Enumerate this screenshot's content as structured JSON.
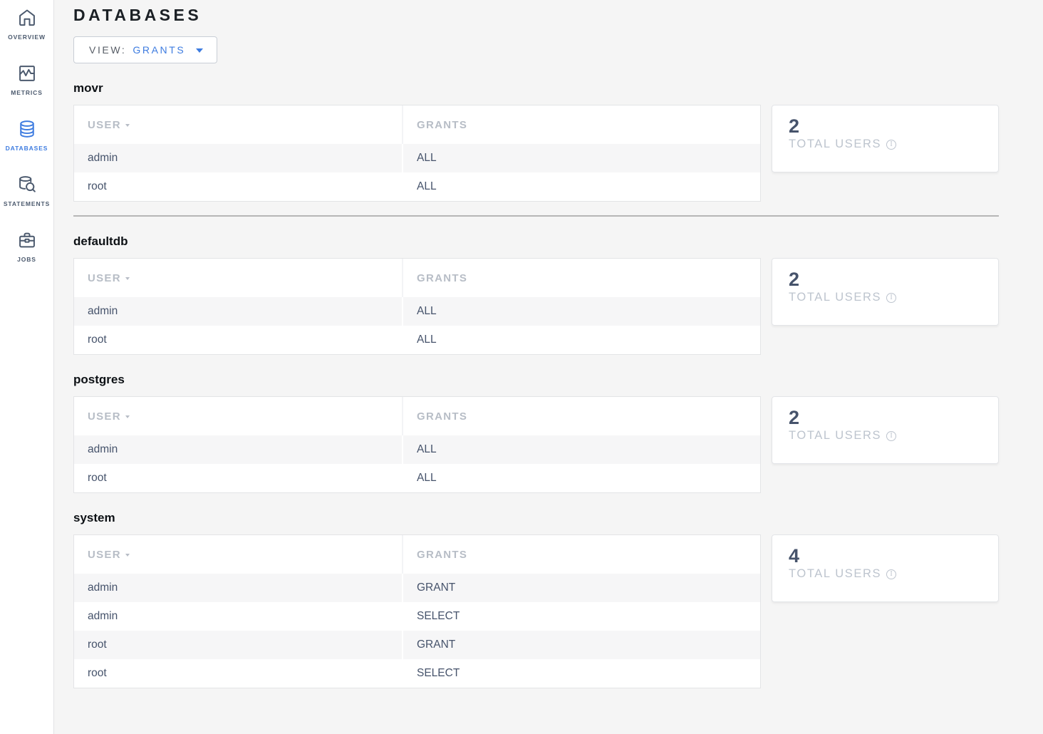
{
  "header": {
    "title": "DATABASES"
  },
  "view_selector": {
    "label": "VIEW:",
    "value": "GRANTS"
  },
  "sidebar": {
    "items": [
      {
        "id": "overview",
        "label": "OVERVIEW",
        "icon": "home-icon",
        "active": false
      },
      {
        "id": "metrics",
        "label": "METRICS",
        "icon": "metrics-icon",
        "active": false
      },
      {
        "id": "databases",
        "label": "DATABASES",
        "icon": "database-icon",
        "active": true
      },
      {
        "id": "statements",
        "label": "STATEMENTS",
        "icon": "statement-search-icon",
        "active": false
      },
      {
        "id": "jobs",
        "label": "JOBS",
        "icon": "briefcase-icon",
        "active": false
      }
    ]
  },
  "table_columns": {
    "user": "USER",
    "grants": "GRANTS"
  },
  "summary_label": "TOTAL USERS",
  "colors": {
    "accent": "#3e7ce0",
    "row_text": "#46536b",
    "muted_header": "#b7bdc6"
  },
  "sections": [
    {
      "name": "movr",
      "total_users": "2",
      "divider_after": true,
      "rows": [
        {
          "user": "admin",
          "grants": "ALL"
        },
        {
          "user": "root",
          "grants": "ALL"
        }
      ]
    },
    {
      "name": "defaultdb",
      "total_users": "2",
      "divider_after": false,
      "rows": [
        {
          "user": "admin",
          "grants": "ALL"
        },
        {
          "user": "root",
          "grants": "ALL"
        }
      ]
    },
    {
      "name": "postgres",
      "total_users": "2",
      "divider_after": false,
      "rows": [
        {
          "user": "admin",
          "grants": "ALL"
        },
        {
          "user": "root",
          "grants": "ALL"
        }
      ]
    },
    {
      "name": "system",
      "total_users": "4",
      "divider_after": false,
      "rows": [
        {
          "user": "admin",
          "grants": "GRANT"
        },
        {
          "user": "admin",
          "grants": "SELECT"
        },
        {
          "user": "root",
          "grants": "GRANT"
        },
        {
          "user": "root",
          "grants": "SELECT"
        }
      ]
    }
  ]
}
